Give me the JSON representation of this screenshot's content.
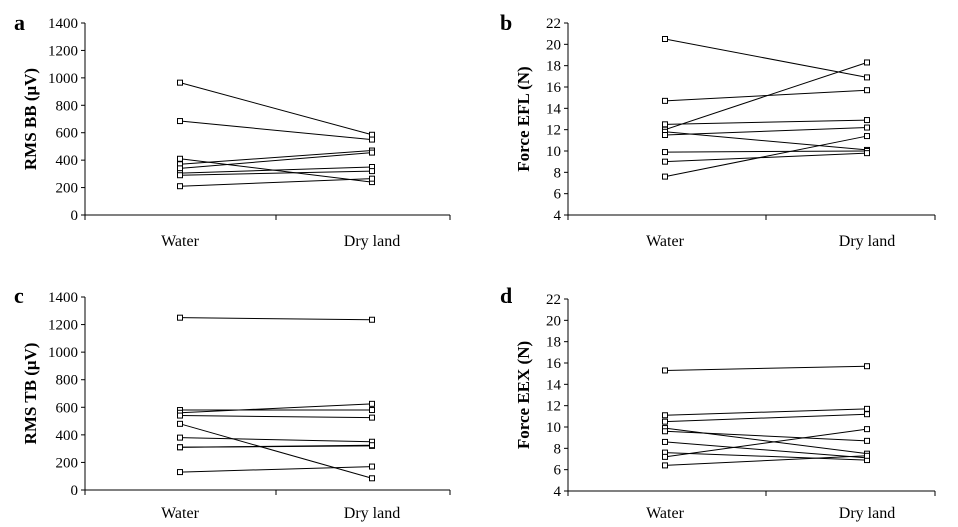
{
  "chart_data": [
    {
      "type": "line",
      "panel": "a",
      "ylabel": "RMS BB (μV)",
      "categories": [
        "Water",
        "Dry land"
      ],
      "ylim": [
        0,
        1400
      ],
      "yticks": [
        0,
        200,
        400,
        600,
        800,
        1000,
        1200,
        1400
      ],
      "series": [
        {
          "values": [
            965,
            585
          ]
        },
        {
          "values": [
            685,
            550
          ]
        },
        {
          "values": [
            410,
            240
          ]
        },
        {
          "values": [
            370,
            470
          ]
        },
        {
          "values": [
            340,
            455
          ]
        },
        {
          "values": [
            305,
            350
          ]
        },
        {
          "values": [
            290,
            320
          ]
        },
        {
          "values": [
            210,
            265
          ]
        }
      ]
    },
    {
      "type": "line",
      "panel": "b",
      "ylabel": "Force EFL (N)",
      "categories": [
        "Water",
        "Dry land"
      ],
      "ylim": [
        4,
        22
      ],
      "yticks": [
        4,
        6,
        8,
        10,
        12,
        14,
        16,
        18,
        20,
        22
      ],
      "series": [
        {
          "values": [
            20.5,
            16.9
          ]
        },
        {
          "values": [
            14.7,
            15.7
          ]
        },
        {
          "values": [
            12.5,
            12.9
          ]
        },
        {
          "values": [
            12.0,
            18.3
          ]
        },
        {
          "values": [
            11.8,
            10.1
          ]
        },
        {
          "values": [
            11.5,
            12.2
          ]
        },
        {
          "values": [
            9.9,
            10.0
          ]
        },
        {
          "values": [
            9.0,
            9.8
          ]
        },
        {
          "values": [
            7.6,
            11.4
          ]
        }
      ]
    },
    {
      "type": "line",
      "panel": "c",
      "ylabel": "RMS TB (μV)",
      "categories": [
        "Water",
        "Dry land"
      ],
      "ylim": [
        0,
        1400
      ],
      "yticks": [
        0,
        200,
        400,
        600,
        800,
        1000,
        1200,
        1400
      ],
      "series": [
        {
          "values": [
            1250,
            1235
          ]
        },
        {
          "values": [
            580,
            580
          ]
        },
        {
          "values": [
            560,
            625
          ]
        },
        {
          "values": [
            540,
            525
          ]
        },
        {
          "values": [
            480,
            85
          ]
        },
        {
          "values": [
            380,
            350
          ]
        },
        {
          "values": [
            310,
            320
          ]
        },
        {
          "values": [
            310,
            325
          ]
        },
        {
          "values": [
            130,
            170
          ]
        }
      ]
    },
    {
      "type": "line",
      "panel": "d",
      "ylabel": "Force EEX (N)",
      "categories": [
        "Water",
        "Dry land"
      ],
      "ylim": [
        4,
        22
      ],
      "yticks": [
        4,
        6,
        8,
        10,
        12,
        14,
        16,
        18,
        20,
        22
      ],
      "series": [
        {
          "values": [
            15.3,
            15.7
          ]
        },
        {
          "values": [
            11.1,
            11.7
          ]
        },
        {
          "values": [
            10.5,
            11.2
          ]
        },
        {
          "values": [
            9.9,
            7.5
          ]
        },
        {
          "values": [
            9.6,
            8.7
          ]
        },
        {
          "values": [
            8.6,
            7.1
          ]
        },
        {
          "values": [
            7.6,
            6.9
          ]
        },
        {
          "values": [
            7.2,
            9.8
          ]
        },
        {
          "values": [
            6.4,
            7.3
          ]
        }
      ]
    }
  ]
}
